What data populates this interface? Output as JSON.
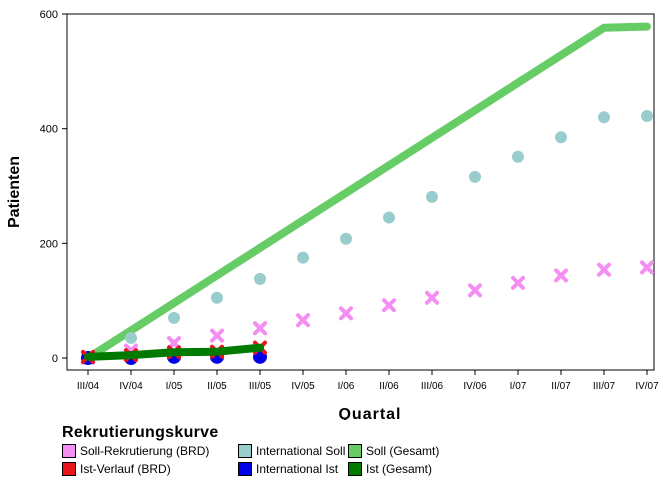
{
  "chart_data": {
    "type": "line",
    "title": "",
    "xlabel": "Quartal",
    "ylabel": "Patienten",
    "ylim": [
      0,
      600
    ],
    "yticks": [
      "0",
      "200",
      "400",
      "600"
    ],
    "categories": [
      "III/04",
      "IV/04",
      "I/05",
      "II/05",
      "III/05",
      "IV/05",
      "I/06",
      "II/06",
      "III/06",
      "IV/06",
      "I/07",
      "II/07",
      "III/07",
      "IV/07"
    ],
    "legend_title": "Rekrutierungskurve",
    "legend_placement": "bottom-left",
    "series": [
      {
        "name": "Soll-Rekrutierung (BRD)",
        "style": "x-marker",
        "color": "#f58ef2",
        "values": [
          0,
          13,
          26,
          39,
          52,
          66,
          78,
          92,
          105,
          118,
          131,
          144,
          154,
          158
        ]
      },
      {
        "name": "Ist-Verlauf (BRD)",
        "style": "x-marker",
        "color": "#e8141c",
        "values": [
          2,
          5,
          10,
          11,
          18,
          null,
          null,
          null,
          null,
          null,
          null,
          null,
          null,
          null
        ]
      },
      {
        "name": "International Soll",
        "style": "dot-marker",
        "color": "#99cccc",
        "values": [
          0,
          35,
          70,
          105,
          138,
          175,
          208,
          245,
          281,
          316,
          351,
          385,
          420,
          422
        ]
      },
      {
        "name": "International Ist",
        "style": "dot-marker",
        "color": "#0000e6",
        "values": [
          0,
          0,
          2,
          2,
          2,
          null,
          null,
          null,
          null,
          null,
          null,
          null,
          null,
          null
        ]
      },
      {
        "name": "Soll (Gesamt)",
        "style": "thick-line",
        "color": "#66cc66",
        "values": [
          0,
          48,
          96,
          144,
          192,
          240,
          288,
          336,
          384,
          432,
          480,
          528,
          576,
          578
        ]
      },
      {
        "name": "Ist (Gesamt)",
        "style": "thick-line",
        "color": "#007a00",
        "values": [
          2,
          5,
          10,
          11,
          18,
          null,
          null,
          null,
          null,
          null,
          null,
          null,
          null,
          null
        ]
      }
    ]
  }
}
